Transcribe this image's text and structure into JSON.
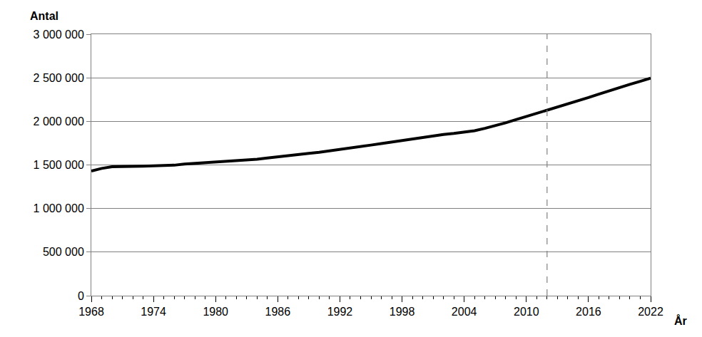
{
  "chart_data": {
    "type": "line",
    "xlabel": "År",
    "ylabel": "Antal",
    "x": [
      1968,
      1969,
      1970,
      1971,
      1972,
      1973,
      1974,
      1975,
      1976,
      1977,
      1978,
      1979,
      1980,
      1981,
      1982,
      1983,
      1984,
      1985,
      1986,
      1987,
      1988,
      1989,
      1990,
      1991,
      1992,
      1993,
      1994,
      1995,
      1996,
      1997,
      1998,
      1999,
      2000,
      2001,
      2002,
      2003,
      2004,
      2005,
      2006,
      2007,
      2008,
      2009,
      2010,
      2011,
      2012,
      2013,
      2014,
      2015,
      2016,
      2017,
      2018,
      2019,
      2020,
      2021,
      2022
    ],
    "values": [
      1430000,
      1460000,
      1480000,
      1485000,
      1483000,
      1485000,
      1487000,
      1490000,
      1497000,
      1510000,
      1518000,
      1522000,
      1527000,
      1535000,
      1545000,
      1552000,
      1565000,
      1580000,
      1595000,
      1608000,
      1620000,
      1632000,
      1645000,
      1660000,
      1675000,
      1690000,
      1710000,
      1728000,
      1745000,
      1762000,
      1780000,
      1800000,
      1820000,
      1836000,
      1850000,
      1862000,
      1875000,
      1893000,
      1920000,
      1950000,
      1983000,
      2020000,
      2055000,
      2090000,
      2125000,
      2160000,
      2198000,
      2235000,
      2273000,
      2313000,
      2353000,
      2390000,
      2425000,
      2460000,
      2495000
    ],
    "color": "#000000",
    "line_style": "solid",
    "xlim": [
      1968,
      2022
    ],
    "xticks": [
      1968,
      1974,
      1980,
      1986,
      1992,
      1998,
      2004,
      2010,
      2016,
      2022
    ],
    "ylim": [
      0,
      3000000
    ],
    "yticks": [
      0,
      {
        "value": 500000,
        "label": "500 000"
      },
      {
        "value": 1000000,
        "label": "1 000 000"
      },
      {
        "value": 1500000,
        "label": "1 500 000"
      },
      {
        "value": 2000000,
        "label": "2 000 000"
      },
      {
        "value": 2500000,
        "label": "2 500 000"
      },
      {
        "value": 3000000,
        "label": "3 000 000"
      }
    ],
    "vline": 2012,
    "grid": true
  }
}
